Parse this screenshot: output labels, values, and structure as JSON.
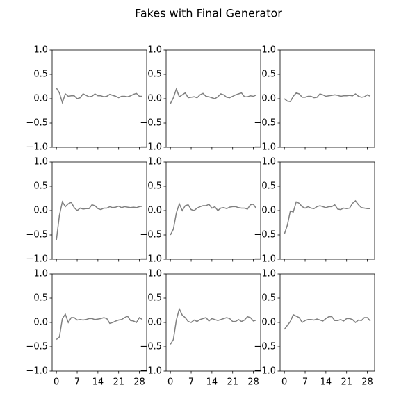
{
  "title": "Fakes with Final Generator",
  "chart_data": [
    {
      "type": "line",
      "x": [
        0,
        1,
        2,
        3,
        4,
        5,
        6,
        7,
        8,
        9,
        10,
        11,
        12,
        13,
        14,
        15,
        16,
        17,
        18,
        19,
        20,
        21,
        22,
        23,
        24,
        25,
        26,
        27,
        28,
        29
      ],
      "values": [
        0.22,
        0.12,
        -0.08,
        0.1,
        0.05,
        0.06,
        0.06,
        0.0,
        0.02,
        0.1,
        0.07,
        0.04,
        0.05,
        0.1,
        0.06,
        0.06,
        0.04,
        0.05,
        0.09,
        0.07,
        0.05,
        0.02,
        0.05,
        0.05,
        0.04,
        0.06,
        0.09,
        0.11,
        0.05,
        0.05
      ],
      "color": "#808080",
      "xlim": [
        -1.45,
        30.45
      ],
      "xticks": [
        0,
        7,
        14,
        21,
        28
      ],
      "xtick_labels": false,
      "ylim": [
        -1,
        1
      ],
      "yticks": [
        {
          "value": -1,
          "label": "−1.0"
        },
        {
          "value": -0.5,
          "label": "−0.5"
        },
        {
          "value": 0,
          "label": "0.0"
        },
        {
          "value": 0.5,
          "label": "0.5"
        },
        {
          "value": 1,
          "label": "1.0"
        }
      ]
    },
    {
      "type": "line",
      "x": [
        0,
        1,
        2,
        3,
        4,
        5,
        6,
        7,
        8,
        9,
        10,
        11,
        12,
        13,
        14,
        15,
        16,
        17,
        18,
        19,
        20,
        21,
        22,
        23,
        24,
        25,
        26,
        27,
        28,
        29
      ],
      "values": [
        -0.1,
        0.02,
        0.2,
        0.04,
        0.08,
        0.12,
        0.02,
        0.03,
        0.04,
        0.02,
        0.08,
        0.11,
        0.05,
        0.04,
        0.02,
        0.0,
        0.04,
        0.1,
        0.08,
        0.03,
        0.02,
        0.05,
        0.08,
        0.1,
        0.12,
        0.04,
        0.04,
        0.06,
        0.05,
        0.08
      ],
      "color": "#808080",
      "xlim": [
        -1.45,
        30.45
      ],
      "xticks": [
        0,
        7,
        14,
        21,
        28
      ],
      "xtick_labels": false,
      "ylim": [
        -1,
        1
      ],
      "yticks": [
        {
          "value": -1,
          "label": "−1.0"
        },
        {
          "value": -0.5,
          "label": "−0.5"
        },
        {
          "value": 0,
          "label": "0.0"
        },
        {
          "value": 0.5,
          "label": "0.5"
        },
        {
          "value": 1,
          "label": "1.0"
        }
      ]
    },
    {
      "type": "line",
      "x": [
        0,
        1,
        2,
        3,
        4,
        5,
        6,
        7,
        8,
        9,
        10,
        11,
        12,
        13,
        14,
        15,
        16,
        17,
        18,
        19,
        20,
        21,
        22,
        23,
        24,
        25,
        26,
        27,
        28,
        29
      ],
      "values": [
        0.0,
        -0.05,
        -0.06,
        0.05,
        0.12,
        0.1,
        0.03,
        0.03,
        0.05,
        0.05,
        0.02,
        0.03,
        0.1,
        0.08,
        0.05,
        0.06,
        0.07,
        0.08,
        0.07,
        0.05,
        0.06,
        0.06,
        0.07,
        0.06,
        0.1,
        0.05,
        0.03,
        0.04,
        0.08,
        0.05
      ],
      "color": "#808080",
      "xlim": [
        -1.45,
        30.45
      ],
      "xticks": [
        0,
        7,
        14,
        21,
        28
      ],
      "xtick_labels": false,
      "ylim": [
        -1,
        1
      ],
      "yticks": [
        {
          "value": -1,
          "label": "−1.0"
        },
        {
          "value": -0.5,
          "label": "−0.5"
        },
        {
          "value": 0,
          "label": "0.0"
        },
        {
          "value": 0.5,
          "label": "0.5"
        },
        {
          "value": 1,
          "label": "1.0"
        }
      ]
    },
    {
      "type": "line",
      "x": [
        0,
        1,
        2,
        3,
        4,
        5,
        6,
        7,
        8,
        9,
        10,
        11,
        12,
        13,
        14,
        15,
        16,
        17,
        18,
        19,
        20,
        21,
        22,
        23,
        24,
        25,
        26,
        27,
        28,
        29
      ],
      "values": [
        -0.6,
        -0.1,
        0.18,
        0.08,
        0.14,
        0.17,
        0.06,
        0.0,
        0.05,
        0.03,
        0.04,
        0.04,
        0.12,
        0.1,
        0.04,
        0.02,
        0.05,
        0.05,
        0.08,
        0.06,
        0.07,
        0.09,
        0.06,
        0.08,
        0.07,
        0.06,
        0.07,
        0.06,
        0.08,
        0.09
      ],
      "color": "#808080",
      "xlim": [
        -1.45,
        30.45
      ],
      "xticks": [
        0,
        7,
        14,
        21,
        28
      ],
      "xtick_labels": false,
      "ylim": [
        -1,
        1
      ],
      "yticks": [
        {
          "value": -1,
          "label": "−1.0"
        },
        {
          "value": -0.5,
          "label": "−0.5"
        },
        {
          "value": 0,
          "label": "0.0"
        },
        {
          "value": 0.5,
          "label": "0.5"
        },
        {
          "value": 1,
          "label": "1.0"
        }
      ]
    },
    {
      "type": "line",
      "x": [
        0,
        1,
        2,
        3,
        4,
        5,
        6,
        7,
        8,
        9,
        10,
        11,
        12,
        13,
        14,
        15,
        16,
        17,
        18,
        19,
        20,
        21,
        22,
        23,
        24,
        25,
        26,
        27,
        28,
        29
      ],
      "values": [
        -0.5,
        -0.38,
        -0.05,
        0.14,
        0.0,
        0.1,
        0.12,
        0.02,
        0.0,
        0.05,
        0.08,
        0.1,
        0.1,
        0.13,
        0.05,
        0.08,
        0.0,
        0.05,
        0.06,
        0.04,
        0.07,
        0.08,
        0.08,
        0.06,
        0.05,
        0.05,
        0.03,
        0.12,
        0.13,
        0.04
      ],
      "color": "#808080",
      "xlim": [
        -1.45,
        30.45
      ],
      "xticks": [
        0,
        7,
        14,
        21,
        28
      ],
      "xtick_labels": false,
      "ylim": [
        -1,
        1
      ],
      "yticks": [
        {
          "value": -1,
          "label": "−1.0"
        },
        {
          "value": -0.5,
          "label": "−0.5"
        },
        {
          "value": 0,
          "label": "0.0"
        },
        {
          "value": 0.5,
          "label": "0.5"
        },
        {
          "value": 1,
          "label": "1.0"
        }
      ]
    },
    {
      "type": "line",
      "x": [
        0,
        1,
        2,
        3,
        4,
        5,
        6,
        7,
        8,
        9,
        10,
        11,
        12,
        13,
        14,
        15,
        16,
        17,
        18,
        19,
        20,
        21,
        22,
        23,
        24,
        25,
        26,
        27,
        28,
        29
      ],
      "values": [
        -0.48,
        -0.3,
        -0.01,
        -0.03,
        0.18,
        0.15,
        0.08,
        0.05,
        0.08,
        0.05,
        0.04,
        0.08,
        0.1,
        0.08,
        0.06,
        0.08,
        0.08,
        0.12,
        0.03,
        0.02,
        0.05,
        0.04,
        0.05,
        0.15,
        0.2,
        0.12,
        0.06,
        0.05,
        0.04,
        0.04
      ],
      "color": "#808080",
      "xlim": [
        -1.45,
        30.45
      ],
      "xticks": [
        0,
        7,
        14,
        21,
        28
      ],
      "xtick_labels": false,
      "ylim": [
        -1,
        1
      ],
      "yticks": [
        {
          "value": -1,
          "label": "−1.0"
        },
        {
          "value": -0.5,
          "label": "−0.5"
        },
        {
          "value": 0,
          "label": "0.0"
        },
        {
          "value": 0.5,
          "label": "0.5"
        },
        {
          "value": 1,
          "label": "1.0"
        }
      ]
    },
    {
      "type": "line",
      "x": [
        0,
        1,
        2,
        3,
        4,
        5,
        6,
        7,
        8,
        9,
        10,
        11,
        12,
        13,
        14,
        15,
        16,
        17,
        18,
        19,
        20,
        21,
        22,
        23,
        24,
        25,
        26,
        27,
        28,
        29
      ],
      "values": [
        -0.35,
        -0.3,
        0.08,
        0.17,
        0.0,
        0.1,
        0.1,
        0.05,
        0.06,
        0.05,
        0.06,
        0.08,
        0.08,
        0.06,
        0.07,
        0.08,
        0.1,
        0.08,
        -0.02,
        0.0,
        0.03,
        0.05,
        0.06,
        0.1,
        0.13,
        0.04,
        0.03,
        0.0,
        0.1,
        0.06
      ],
      "color": "#808080",
      "xlim": [
        -1.45,
        30.45
      ],
      "xticks": [
        0,
        7,
        14,
        21,
        28
      ],
      "xtick_labels": true,
      "ylim": [
        -1,
        1
      ],
      "yticks": [
        {
          "value": -1,
          "label": "−1.0"
        },
        {
          "value": -0.5,
          "label": "−0.5"
        },
        {
          "value": 0,
          "label": "0.0"
        },
        {
          "value": 0.5,
          "label": "0.5"
        },
        {
          "value": 1,
          "label": "1.0"
        }
      ]
    },
    {
      "type": "line",
      "x": [
        0,
        1,
        2,
        3,
        4,
        5,
        6,
        7,
        8,
        9,
        10,
        11,
        12,
        13,
        14,
        15,
        16,
        17,
        18,
        19,
        20,
        21,
        22,
        23,
        24,
        25,
        26,
        27,
        28,
        29
      ],
      "values": [
        -0.45,
        -0.35,
        0.05,
        0.28,
        0.15,
        0.1,
        0.02,
        0.0,
        0.05,
        0.02,
        0.06,
        0.08,
        0.1,
        0.03,
        0.08,
        0.06,
        0.04,
        0.06,
        0.08,
        0.1,
        0.08,
        0.02,
        0.02,
        0.06,
        0.02,
        0.05,
        0.12,
        0.1,
        0.03,
        0.05
      ],
      "color": "#808080",
      "xlim": [
        -1.45,
        30.45
      ],
      "xticks": [
        0,
        7,
        14,
        21,
        28
      ],
      "xtick_labels": true,
      "ylim": [
        -1,
        1
      ],
      "yticks": [
        {
          "value": -1,
          "label": "−1.0"
        },
        {
          "value": -0.5,
          "label": "−0.5"
        },
        {
          "value": 0,
          "label": "0.0"
        },
        {
          "value": 0.5,
          "label": "0.5"
        },
        {
          "value": 1,
          "label": "1.0"
        }
      ]
    },
    {
      "type": "line",
      "x": [
        0,
        1,
        2,
        3,
        4,
        5,
        6,
        7,
        8,
        9,
        10,
        11,
        12,
        13,
        14,
        15,
        16,
        17,
        18,
        19,
        20,
        21,
        22,
        23,
        24,
        25,
        26,
        27,
        28,
        29
      ],
      "values": [
        -0.14,
        -0.06,
        0.02,
        0.16,
        0.13,
        0.1,
        0.0,
        0.04,
        0.06,
        0.06,
        0.05,
        0.07,
        0.05,
        0.03,
        0.08,
        0.12,
        0.12,
        0.04,
        0.04,
        0.06,
        0.03,
        0.08,
        0.08,
        0.06,
        0.0,
        0.05,
        0.04,
        0.1,
        0.1,
        0.03
      ],
      "color": "#808080",
      "xlim": [
        -1.45,
        30.45
      ],
      "xticks": [
        0,
        7,
        14,
        21,
        28
      ],
      "xtick_labels": true,
      "ylim": [
        -1,
        1
      ],
      "yticks": [
        {
          "value": -1,
          "label": "−1.0"
        },
        {
          "value": -0.5,
          "label": "−0.5"
        },
        {
          "value": 0,
          "label": "0.0"
        },
        {
          "value": 0.5,
          "label": "0.5"
        },
        {
          "value": 1,
          "label": "1.0"
        }
      ]
    }
  ]
}
